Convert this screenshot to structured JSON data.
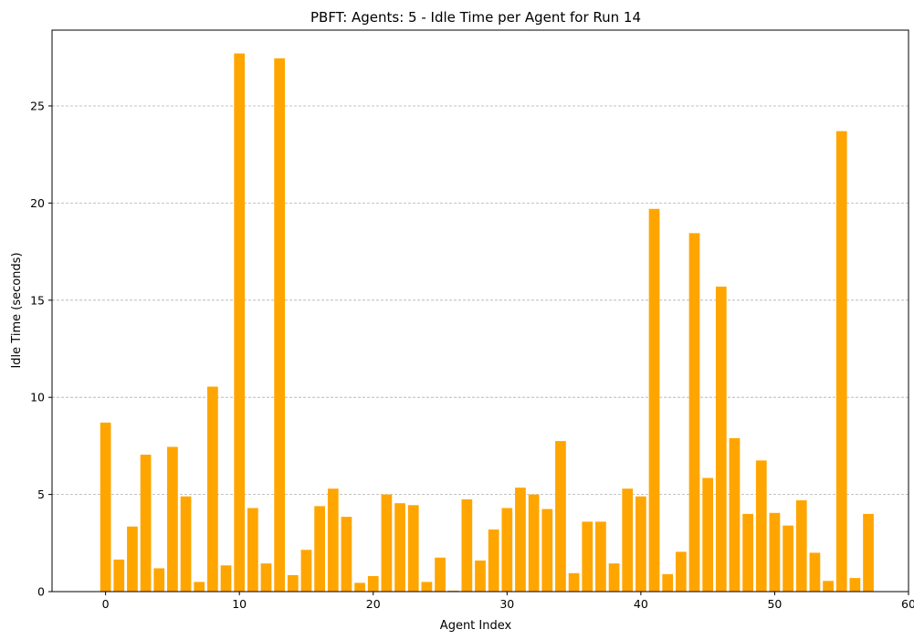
{
  "chart_data": {
    "type": "bar",
    "title": "PBFT: Agents: 5 - Idle Time per Agent for Run 14",
    "xlabel": "Agent Index",
    "ylabel": "Idle Time (seconds)",
    "xlim": [
      -4,
      60
    ],
    "ylim": [
      0,
      28.9
    ],
    "xticks": [
      0,
      10,
      20,
      30,
      40,
      50,
      60
    ],
    "yticks": [
      0,
      5,
      10,
      15,
      20,
      25
    ],
    "grid": "y-dashed",
    "bar_color": "#ffa500",
    "x": [
      0,
      1,
      2,
      3,
      4,
      5,
      6,
      7,
      8,
      9,
      10,
      11,
      12,
      13,
      14,
      15,
      16,
      17,
      18,
      19,
      20,
      21,
      22,
      23,
      24,
      25,
      26,
      27,
      28,
      29,
      30,
      31,
      32,
      33,
      34,
      35,
      36,
      37,
      38,
      39,
      40,
      41,
      42,
      43,
      44,
      45,
      46,
      47,
      48,
      49,
      50,
      51,
      52,
      53,
      54,
      55,
      56,
      57
    ],
    "values": [
      8.7,
      1.65,
      3.35,
      7.05,
      1.2,
      7.45,
      4.9,
      0.5,
      10.55,
      1.35,
      27.7,
      4.3,
      1.45,
      27.45,
      0.85,
      2.15,
      4.4,
      5.3,
      3.85,
      0.45,
      0.8,
      5.0,
      4.55,
      4.45,
      0.5,
      1.75,
      0.05,
      4.75,
      1.6,
      3.2,
      4.3,
      5.35,
      5.0,
      4.25,
      7.75,
      0.95,
      3.6,
      3.6,
      1.45,
      5.3,
      4.9,
      19.7,
      0.9,
      2.05,
      18.45,
      5.85,
      15.7,
      7.9,
      4.0,
      6.75,
      4.05,
      3.4,
      4.7,
      2.0,
      0.55,
      23.7,
      0.7,
      4.0
    ]
  }
}
